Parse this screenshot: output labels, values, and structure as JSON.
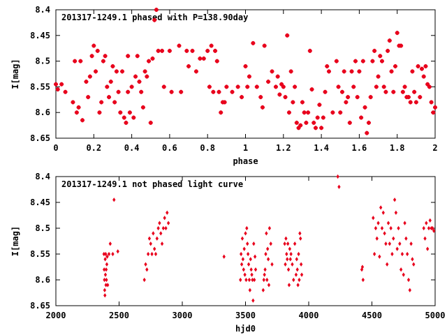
{
  "chart_data": [
    {
      "type": "scatter",
      "title": "201317-1249.1 phased with P=138.90day",
      "xlabel": "phase",
      "ylabel": "I[mag]",
      "xlim": [
        0,
        2
      ],
      "ylim": [
        8.4,
        8.65
      ],
      "y_inverted": true,
      "xticks": [
        0,
        0.2,
        0.4,
        0.6,
        0.8,
        1,
        1.2,
        1.4,
        1.6,
        1.8,
        2
      ],
      "xtick_labels": [
        "0",
        "0.2",
        "0.4",
        "0.6",
        "0.8",
        "1",
        "1.2",
        "1.4",
        "1.6",
        "1.8",
        "2"
      ],
      "yticks": [
        8.4,
        8.45,
        8.5,
        8.55,
        8.6,
        8.65
      ],
      "ytick_labels": [
        "8.4",
        "8.45",
        "8.5",
        "8.55",
        "8.6",
        "8.65"
      ],
      "grid": false,
      "marker_color": "#e8001c",
      "points": [
        [
          0.0,
          8.545
        ],
        [
          0.01,
          8.555
        ],
        [
          0.03,
          8.545
        ],
        [
          0.05,
          8.56
        ],
        [
          0.09,
          8.58
        ],
        [
          0.1,
          8.5
        ],
        [
          0.11,
          8.6
        ],
        [
          0.12,
          8.59
        ],
        [
          0.13,
          8.5
        ],
        [
          0.14,
          8.615
        ],
        [
          0.16,
          8.54
        ],
        [
          0.17,
          8.57
        ],
        [
          0.18,
          8.53
        ],
        [
          0.19,
          8.49
        ],
        [
          0.2,
          8.47
        ],
        [
          0.21,
          8.52
        ],
        [
          0.22,
          8.48
        ],
        [
          0.23,
          8.6
        ],
        [
          0.24,
          8.58
        ],
        [
          0.25,
          8.5
        ],
        [
          0.26,
          8.49
        ],
        [
          0.27,
          8.55
        ],
        [
          0.28,
          8.57
        ],
        [
          0.29,
          8.54
        ],
        [
          0.3,
          8.51
        ],
        [
          0.31,
          8.58
        ],
        [
          0.32,
          8.52
        ],
        [
          0.33,
          8.56
        ],
        [
          0.34,
          8.6
        ],
        [
          0.35,
          8.52
        ],
        [
          0.36,
          8.61
        ],
        [
          0.37,
          8.62
        ],
        [
          0.38,
          8.49
        ],
        [
          0.38,
          8.56
        ],
        [
          0.39,
          8.6
        ],
        [
          0.4,
          8.55
        ],
        [
          0.41,
          8.61
        ],
        [
          0.42,
          8.53
        ],
        [
          0.43,
          8.49
        ],
        [
          0.44,
          8.54
        ],
        [
          0.45,
          8.56
        ],
        [
          0.46,
          8.59
        ],
        [
          0.47,
          8.52
        ],
        [
          0.48,
          8.53
        ],
        [
          0.49,
          8.5
        ],
        [
          0.5,
          8.62
        ],
        [
          0.51,
          8.495
        ],
        [
          0.52,
          8.42
        ],
        [
          0.53,
          8.4
        ],
        [
          0.54,
          8.48
        ],
        [
          0.56,
          8.48
        ],
        [
          0.57,
          8.55
        ],
        [
          0.6,
          8.48
        ],
        [
          0.61,
          8.56
        ],
        [
          0.65,
          8.47
        ],
        [
          0.66,
          8.56
        ],
        [
          0.69,
          8.48
        ],
        [
          0.7,
          8.51
        ],
        [
          0.72,
          8.48
        ],
        [
          0.74,
          8.52
        ],
        [
          0.76,
          8.495
        ],
        [
          0.78,
          8.495
        ],
        [
          0.8,
          8.48
        ],
        [
          0.81,
          8.55
        ],
        [
          0.82,
          8.47
        ],
        [
          0.83,
          8.56
        ],
        [
          0.84,
          8.48
        ],
        [
          0.85,
          8.5
        ],
        [
          0.86,
          8.56
        ],
        [
          0.87,
          8.6
        ],
        [
          0.88,
          8.58
        ],
        [
          0.89,
          8.58
        ],
        [
          0.9,
          8.55
        ],
        [
          0.93,
          8.56
        ],
        [
          0.96,
          8.55
        ],
        [
          0.98,
          8.57
        ],
        [
          1.0,
          8.51
        ],
        [
          1.01,
          8.55
        ],
        [
          1.02,
          8.53
        ],
        [
          1.04,
          8.465
        ],
        [
          1.06,
          8.55
        ],
        [
          1.08,
          8.57
        ],
        [
          1.09,
          8.59
        ],
        [
          1.1,
          8.47
        ],
        [
          1.12,
          8.54
        ],
        [
          1.14,
          8.52
        ],
        [
          1.16,
          8.55
        ],
        [
          1.17,
          8.53
        ],
        [
          1.18,
          8.565
        ],
        [
          1.19,
          8.545
        ],
        [
          1.2,
          8.55
        ],
        [
          1.21,
          8.57
        ],
        [
          1.22,
          8.45
        ],
        [
          1.23,
          8.6
        ],
        [
          1.24,
          8.52
        ],
        [
          1.25,
          8.58
        ],
        [
          1.26,
          8.55
        ],
        [
          1.27,
          8.62
        ],
        [
          1.28,
          8.63
        ],
        [
          1.29,
          8.625
        ],
        [
          1.3,
          8.58
        ],
        [
          1.31,
          8.6
        ],
        [
          1.32,
          8.62
        ],
        [
          1.33,
          8.6
        ],
        [
          1.34,
          8.48
        ],
        [
          1.35,
          8.555
        ],
        [
          1.36,
          8.62
        ],
        [
          1.37,
          8.63
        ],
        [
          1.38,
          8.61
        ],
        [
          1.39,
          8.585
        ],
        [
          1.4,
          8.63
        ],
        [
          1.41,
          8.61
        ],
        [
          1.42,
          8.56
        ],
        [
          1.43,
          8.51
        ],
        [
          1.44,
          8.52
        ],
        [
          1.46,
          8.6
        ],
        [
          1.48,
          8.5
        ],
        [
          1.49,
          8.55
        ],
        [
          1.5,
          8.6
        ],
        [
          1.51,
          8.56
        ],
        [
          1.52,
          8.52
        ],
        [
          1.53,
          8.58
        ],
        [
          1.54,
          8.57
        ],
        [
          1.55,
          8.62
        ],
        [
          1.56,
          8.52
        ],
        [
          1.57,
          8.55
        ],
        [
          1.58,
          8.5
        ],
        [
          1.59,
          8.57
        ],
        [
          1.6,
          8.52
        ],
        [
          1.61,
          8.61
        ],
        [
          1.62,
          8.5
        ],
        [
          1.63,
          8.59
        ],
        [
          1.64,
          8.64
        ],
        [
          1.65,
          8.62
        ],
        [
          1.66,
          8.57
        ],
        [
          1.67,
          8.5
        ],
        [
          1.68,
          8.48
        ],
        [
          1.69,
          8.55
        ],
        [
          1.7,
          8.53
        ],
        [
          1.71,
          8.49
        ],
        [
          1.72,
          8.5
        ],
        [
          1.73,
          8.55
        ],
        [
          1.74,
          8.56
        ],
        [
          1.75,
          8.48
        ],
        [
          1.76,
          8.46
        ],
        [
          1.77,
          8.52
        ],
        [
          1.78,
          8.56
        ],
        [
          1.79,
          8.51
        ],
        [
          1.8,
          8.445
        ],
        [
          1.81,
          8.47
        ],
        [
          1.82,
          8.47
        ],
        [
          1.83,
          8.56
        ],
        [
          1.84,
          8.55
        ],
        [
          1.85,
          8.57
        ],
        [
          1.86,
          8.57
        ],
        [
          1.87,
          8.58
        ],
        [
          1.88,
          8.52
        ],
        [
          1.89,
          8.56
        ],
        [
          1.9,
          8.58
        ],
        [
          1.91,
          8.51
        ],
        [
          1.92,
          8.57
        ],
        [
          1.93,
          8.515
        ],
        [
          1.94,
          8.53
        ],
        [
          1.95,
          8.51
        ],
        [
          1.96,
          8.545
        ],
        [
          1.97,
          8.55
        ],
        [
          1.98,
          8.58
        ],
        [
          1.99,
          8.6
        ],
        [
          2.0,
          8.59
        ]
      ]
    },
    {
      "type": "scatter",
      "title": "201317-1249.1 not phased light curve",
      "xlabel": "hjd0",
      "ylabel": "I[mag]",
      "xlim": [
        2000,
        5000
      ],
      "ylim": [
        8.4,
        8.65
      ],
      "y_inverted": true,
      "xticks": [
        2000,
        2500,
        3000,
        3500,
        4000,
        4500,
        5000
      ],
      "xtick_labels": [
        "2000",
        "2500",
        "3000",
        "3500",
        "4000",
        "4500",
        "5000"
      ],
      "yticks": [
        8.4,
        8.45,
        8.5,
        8.55,
        8.6,
        8.65
      ],
      "ytick_labels": [
        "8.4",
        "8.45",
        "8.5",
        "8.55",
        "8.6",
        "8.65"
      ],
      "grid": false,
      "marker_color": "#e8001c",
      "points": [
        [
          2380,
          8.55
        ],
        [
          2382,
          8.58
        ],
        [
          2384,
          8.6
        ],
        [
          2386,
          8.62
        ],
        [
          2388,
          8.63
        ],
        [
          2390,
          8.56
        ],
        [
          2392,
          8.59
        ],
        [
          2394,
          8.55
        ],
        [
          2396,
          8.61
        ],
        [
          2398,
          8.58
        ],
        [
          2400,
          8.6
        ],
        [
          2403,
          8.57
        ],
        [
          2406,
          8.555
        ],
        [
          2410,
          8.61
        ],
        [
          2420,
          8.55
        ],
        [
          2430,
          8.53
        ],
        [
          2450,
          8.55
        ],
        [
          2460,
          8.445
        ],
        [
          2490,
          8.545
        ],
        [
          2700,
          8.6
        ],
        [
          2710,
          8.57
        ],
        [
          2720,
          8.58
        ],
        [
          2730,
          8.55
        ],
        [
          2740,
          8.52
        ],
        [
          2750,
          8.53
        ],
        [
          2760,
          8.55
        ],
        [
          2770,
          8.51
        ],
        [
          2780,
          8.54
        ],
        [
          2790,
          8.55
        ],
        [
          2800,
          8.52
        ],
        [
          2810,
          8.5
        ],
        [
          2820,
          8.49
        ],
        [
          2830,
          8.51
        ],
        [
          2840,
          8.53
        ],
        [
          2850,
          8.5
        ],
        [
          2860,
          8.48
        ],
        [
          2870,
          8.5
        ],
        [
          2880,
          8.47
        ],
        [
          2890,
          8.49
        ],
        [
          3330,
          8.555
        ],
        [
          3460,
          8.6
        ],
        [
          3465,
          8.55
        ],
        [
          3470,
          8.57
        ],
        [
          3475,
          8.52
        ],
        [
          3480,
          8.56
        ],
        [
          3485,
          8.58
        ],
        [
          3490,
          8.54
        ],
        [
          3495,
          8.59
        ],
        [
          3500,
          8.51
        ],
        [
          3505,
          8.6
        ],
        [
          3510,
          8.5
        ],
        [
          3515,
          8.53
        ],
        [
          3520,
          8.55
        ],
        [
          3525,
          8.57
        ],
        [
          3530,
          8.6
        ],
        [
          3535,
          8.62
        ],
        [
          3540,
          8.56
        ],
        [
          3545,
          8.58
        ],
        [
          3550,
          8.59
        ],
        [
          3555,
          8.6
        ],
        [
          3560,
          8.64
        ],
        [
          3565,
          8.53
        ],
        [
          3570,
          8.6
        ],
        [
          3575,
          8.555
        ],
        [
          3580,
          8.58
        ],
        [
          3640,
          8.62
        ],
        [
          3645,
          8.6
        ],
        [
          3650,
          8.59
        ],
        [
          3655,
          8.58
        ],
        [
          3660,
          8.55
        ],
        [
          3665,
          8.51
        ],
        [
          3670,
          8.6
        ],
        [
          3675,
          8.54
        ],
        [
          3680,
          8.56
        ],
        [
          3685,
          8.61
        ],
        [
          3690,
          8.5
        ],
        [
          3700,
          8.53
        ],
        [
          3710,
          8.57
        ],
        [
          3810,
          8.53
        ],
        [
          3815,
          8.57
        ],
        [
          3820,
          8.52
        ],
        [
          3825,
          8.55
        ],
        [
          3830,
          8.56
        ],
        [
          3835,
          8.53
        ],
        [
          3840,
          8.58
        ],
        [
          3845,
          8.61
        ],
        [
          3850,
          8.54
        ],
        [
          3855,
          8.56
        ],
        [
          3860,
          8.55
        ],
        [
          3870,
          8.57
        ],
        [
          3880,
          8.6
        ],
        [
          3890,
          8.53
        ],
        [
          3900,
          8.59
        ],
        [
          3905,
          8.56
        ],
        [
          3910,
          8.58
        ],
        [
          3915,
          8.61
        ],
        [
          3920,
          8.55
        ],
        [
          3925,
          8.6
        ],
        [
          3930,
          8.51
        ],
        [
          3935,
          8.52
        ],
        [
          3940,
          8.57
        ],
        [
          3945,
          8.59
        ],
        [
          4230,
          8.4
        ],
        [
          4240,
          8.42
        ],
        [
          4420,
          8.58
        ],
        [
          4425,
          8.575
        ],
        [
          4430,
          8.6
        ],
        [
          4510,
          8.48
        ],
        [
          4520,
          8.55
        ],
        [
          4530,
          8.5
        ],
        [
          4540,
          8.52
        ],
        [
          4550,
          8.49
        ],
        [
          4560,
          8.555
        ],
        [
          4570,
          8.46
        ],
        [
          4580,
          8.5
        ],
        [
          4590,
          8.47
        ],
        [
          4600,
          8.51
        ],
        [
          4610,
          8.53
        ],
        [
          4620,
          8.57
        ],
        [
          4630,
          8.49
        ],
        [
          4640,
          8.53
        ],
        [
          4650,
          8.5
        ],
        [
          4660,
          8.55
        ],
        [
          4670,
          8.52
        ],
        [
          4680,
          8.445
        ],
        [
          4690,
          8.47
        ],
        [
          4700,
          8.54
        ],
        [
          4710,
          8.5
        ],
        [
          4720,
          8.53
        ],
        [
          4730,
          8.58
        ],
        [
          4740,
          8.55
        ],
        [
          4750,
          8.59
        ],
        [
          4760,
          8.49
        ],
        [
          4770,
          8.52
        ],
        [
          4780,
          8.55
        ],
        [
          4790,
          8.6
        ],
        [
          4800,
          8.62
        ],
        [
          4810,
          8.53
        ],
        [
          4820,
          8.56
        ],
        [
          4830,
          8.57
        ],
        [
          4910,
          8.5
        ],
        [
          4920,
          8.52
        ],
        [
          4930,
          8.49
        ],
        [
          4940,
          8.54
        ],
        [
          4950,
          8.5
        ],
        [
          4960,
          8.485
        ],
        [
          4970,
          8.5
        ],
        [
          4980,
          8.5
        ],
        [
          4990,
          8.505
        ]
      ]
    }
  ]
}
